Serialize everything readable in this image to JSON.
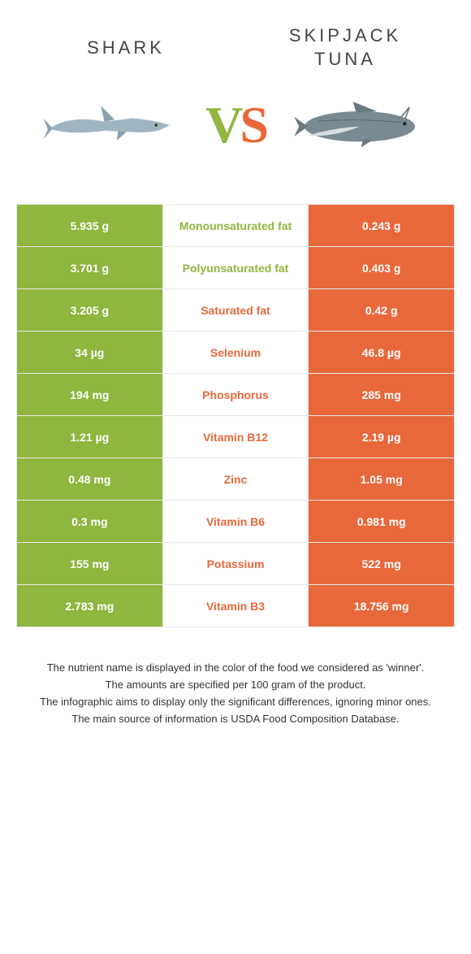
{
  "colors": {
    "green": "#8fb63e",
    "orange": "#e8683c",
    "border": "#e8e8e8",
    "bg": "#ffffff",
    "text": "#333333"
  },
  "header": {
    "left": "SHARK",
    "right_line1": "SKIPJACK",
    "right_line2": "TUNA",
    "vs_v": "V",
    "vs_s": "S"
  },
  "rows": [
    {
      "left": "5.935 g",
      "mid": "Monounsaturated fat",
      "right": "0.243 g",
      "winner": "left"
    },
    {
      "left": "3.701 g",
      "mid": "Polyunsaturated fat",
      "right": "0.403 g",
      "winner": "left"
    },
    {
      "left": "3.205 g",
      "mid": "Saturated fat",
      "right": "0.42 g",
      "winner": "right"
    },
    {
      "left": "34 µg",
      "mid": "Selenium",
      "right": "46.8 µg",
      "winner": "right"
    },
    {
      "left": "194 mg",
      "mid": "Phosphorus",
      "right": "285 mg",
      "winner": "right"
    },
    {
      "left": "1.21 µg",
      "mid": "Vitamin B12",
      "right": "2.19 µg",
      "winner": "right"
    },
    {
      "left": "0.48 mg",
      "mid": "Zinc",
      "right": "1.05 mg",
      "winner": "right"
    },
    {
      "left": "0.3 mg",
      "mid": "Vitamin B6",
      "right": "0.981 mg",
      "winner": "right"
    },
    {
      "left": "155 mg",
      "mid": "Potassium",
      "right": "522 mg",
      "winner": "right"
    },
    {
      "left": "2.783 mg",
      "mid": "Vitamin B3",
      "right": "18.756 mg",
      "winner": "right"
    }
  ],
  "footer": {
    "l1": "The nutrient name is displayed in the color of the food we considered as 'winner'.",
    "l2": "The amounts are specified per 100 gram of the product.",
    "l3": "The infographic aims to display only the significant differences, ignoring minor ones.",
    "l4": "The main source of information is USDA Food Composition Database."
  }
}
